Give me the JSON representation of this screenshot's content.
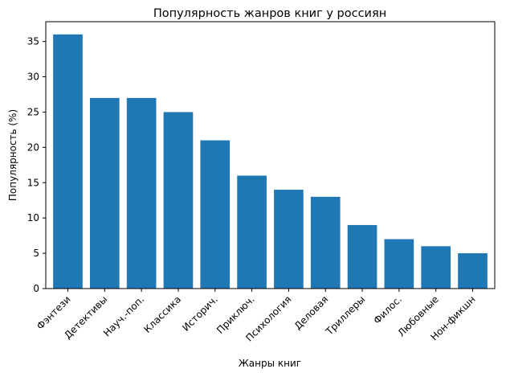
{
  "chart_data": {
    "type": "bar",
    "title": "Популярность жанров книг у россиян",
    "xlabel": "Жанры книг",
    "ylabel": "Популярность (%)",
    "categories": [
      "Фэнтези",
      "Детективы",
      "Науч.-поп.",
      "Классика",
      "Историч.",
      "Приключ.",
      "Психология",
      "Деловая",
      "Триллеры",
      "Филос.",
      "Любовные",
      "Нон-фикшн"
    ],
    "values": [
      36,
      27,
      27,
      25,
      21,
      16,
      14,
      13,
      9,
      7,
      6,
      5
    ],
    "ylim": [
      0,
      37.8
    ],
    "yticks": [
      0,
      5,
      10,
      15,
      20,
      25,
      30,
      35
    ],
    "bar_color": "#1f77b4",
    "grid": false,
    "legend": "none"
  }
}
